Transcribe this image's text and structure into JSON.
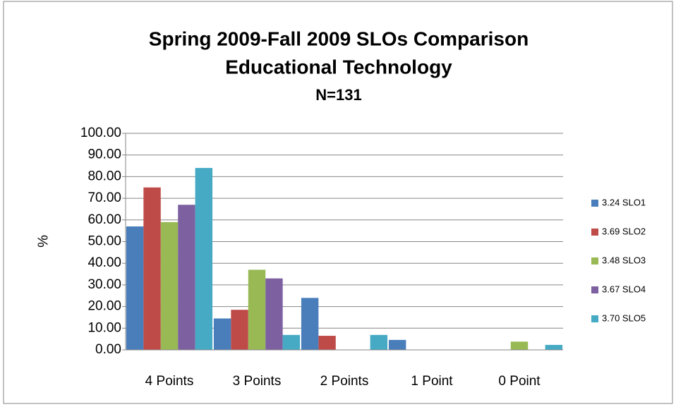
{
  "chart_data": {
    "type": "bar",
    "title": "Spring 2009-Fall 2009 SLOs Comparison",
    "subtitle": "Educational Technology",
    "annotation": "N=131",
    "y_label": "%",
    "categories": [
      "4 Points",
      "3 Points",
      "2 Points",
      "1 Point",
      "0 Point"
    ],
    "series": [
      {
        "name": "3.24 SLO1",
        "color": "#4a7ebb",
        "values": [
          57,
          14.5,
          24,
          4.6,
          0
        ]
      },
      {
        "name": "3.69 SLO2",
        "color": "#be4b48",
        "values": [
          75,
          18.5,
          6.5,
          0,
          0
        ]
      },
      {
        "name": "3.48 SLO3",
        "color": "#98b954",
        "values": [
          59,
          37,
          0,
          0,
          3.8
        ]
      },
      {
        "name": "3.67 SLO4",
        "color": "#7d60a0",
        "values": [
          67,
          33,
          0,
          0,
          0
        ]
      },
      {
        "name": "3.70 SLO5",
        "color": "#46aac5",
        "values": [
          84,
          6.9,
          6.9,
          0,
          2.3
        ]
      }
    ],
    "ylim": [
      0,
      100
    ],
    "yticks": [
      {
        "value": 0,
        "label": "0.00"
      },
      {
        "value": 10,
        "label": "10.00"
      },
      {
        "value": 20,
        "label": "20.00"
      },
      {
        "value": 30,
        "label": "30.00"
      },
      {
        "value": 40,
        "label": "40.00"
      },
      {
        "value": 50,
        "label": "50.00"
      },
      {
        "value": 60,
        "label": "60.00"
      },
      {
        "value": 70,
        "label": "70.00"
      },
      {
        "value": 80,
        "label": "80.00"
      },
      {
        "value": 90,
        "label": "90.00"
      },
      {
        "value": 100,
        "label": "100.00"
      }
    ],
    "grid": true,
    "legend": "right"
  }
}
